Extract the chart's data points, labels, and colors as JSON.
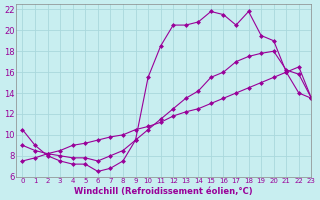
{
  "xlabel": "Windchill (Refroidissement éolien,°C)",
  "background_color": "#c8eef0",
  "line_color": "#990099",
  "grid_color": "#b0d8dc",
  "xlim": [
    -0.5,
    23
  ],
  "ylim": [
    6,
    22.5
  ],
  "xticks": [
    0,
    1,
    2,
    3,
    4,
    5,
    6,
    7,
    8,
    9,
    10,
    11,
    12,
    13,
    14,
    15,
    16,
    17,
    18,
    19,
    20,
    21,
    22,
    23
  ],
  "yticks": [
    6,
    8,
    10,
    12,
    14,
    16,
    18,
    20,
    22
  ],
  "line1_x": [
    0,
    1,
    2,
    3,
    4,
    5,
    6,
    7,
    8,
    9,
    10,
    11,
    12,
    13,
    14,
    15,
    16,
    17,
    18,
    19,
    20,
    21,
    22,
    23
  ],
  "line1_y": [
    10.5,
    9.0,
    8.0,
    7.5,
    7.2,
    7.2,
    6.5,
    6.8,
    7.5,
    9.5,
    15.5,
    18.5,
    20.5,
    20.5,
    20.8,
    21.8,
    21.5,
    20.5,
    21.8,
    19.5,
    19.0,
    16.0,
    14.0,
    13.5
  ],
  "line2_x": [
    0,
    1,
    2,
    3,
    4,
    5,
    6,
    7,
    8,
    9,
    10,
    11,
    12,
    13,
    14,
    15,
    16,
    17,
    18,
    19,
    20,
    21,
    22,
    23
  ],
  "line2_y": [
    9.0,
    8.5,
    8.2,
    8.0,
    7.8,
    7.8,
    7.5,
    8.0,
    8.5,
    9.5,
    10.5,
    11.5,
    12.5,
    13.5,
    14.2,
    15.5,
    16.0,
    17.0,
    17.5,
    17.8,
    18.0,
    16.2,
    15.8,
    13.5
  ],
  "line3_x": [
    0,
    1,
    2,
    3,
    4,
    5,
    6,
    7,
    8,
    9,
    10,
    11,
    12,
    13,
    14,
    15,
    16,
    17,
    18,
    19,
    20,
    21,
    22,
    23
  ],
  "line3_y": [
    7.5,
    7.8,
    8.2,
    8.5,
    9.0,
    9.2,
    9.5,
    9.8,
    10.0,
    10.5,
    10.8,
    11.2,
    11.8,
    12.2,
    12.5,
    13.0,
    13.5,
    14.0,
    14.5,
    15.0,
    15.5,
    16.0,
    16.5,
    13.5
  ]
}
